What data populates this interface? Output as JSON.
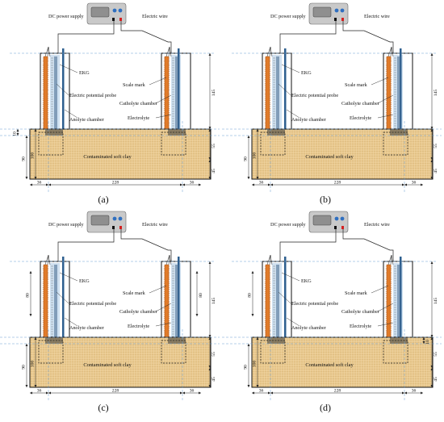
{
  "labels": {
    "power_supply": "DC power supply",
    "wire": "Electric wire",
    "ekg": "EKG",
    "probe": "Electric potential probe",
    "anolyte": "Anolyte chamber",
    "scale": "Scale mark",
    "catholyte": "Catholyte chamber",
    "electrolyte": "Electrolyte",
    "clay": "Contaminated soft clay"
  },
  "panels": [
    {
      "caption": "(a)",
      "dims": {
        "left_bottom": "36",
        "middle": "228",
        "right_bottom": "36",
        "left_outer": "90",
        "left_inner": "100",
        "left_small": "10",
        "right_top": "145",
        "right_mid": "55",
        "right_bottom_v": "45"
      }
    },
    {
      "caption": "(b)",
      "dims": {
        "left_bottom": "36",
        "middle": "228",
        "right_bottom": "36",
        "left_outer": "90",
        "left_inner": "100",
        "right_top": "145",
        "right_mid": "55",
        "right_bottom_v": "45"
      }
    },
    {
      "caption": "(c)",
      "dims": {
        "left_bottom": "36",
        "middle": "228",
        "right_bottom": "36",
        "left_outer": "90",
        "left_inner": "100",
        "left_upper": "80",
        "right_upper": "80",
        "right_top": "145",
        "right_mid": "55",
        "right_bottom_v": "45"
      }
    },
    {
      "caption": "(d)",
      "dims": {
        "left_bottom": "36",
        "middle": "228",
        "right_bottom": "36",
        "left_outer": "90",
        "left_inner": "100",
        "left_upper": "80",
        "right_small": "10",
        "right_top": "145",
        "right_mid": "55",
        "right_bottom_v": "45"
      }
    }
  ],
  "colors": {
    "clay": "#e9c98f",
    "chamber": "#a9c6e2",
    "ekg": "#e07b2a",
    "probe": "#2e5f8f",
    "power_body": "#c9c9c9",
    "screen": "#8f8f8f",
    "knob": "#2f6fc0",
    "red_terminal": "#d42020"
  }
}
